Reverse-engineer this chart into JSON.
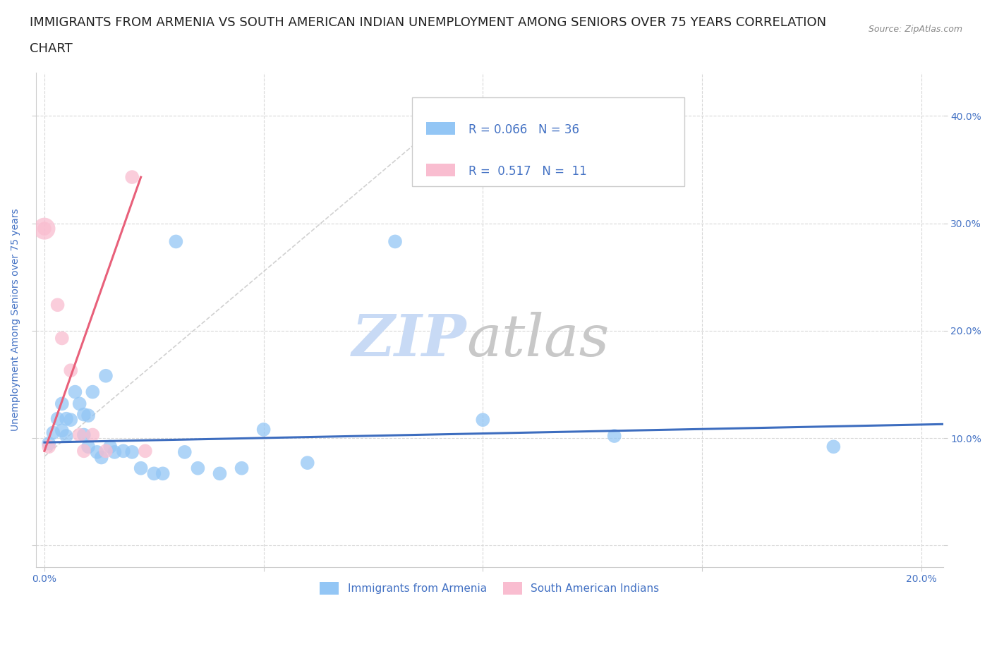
{
  "title_line1": "IMMIGRANTS FROM ARMENIA VS SOUTH AMERICAN INDIAN UNEMPLOYMENT AMONG SENIORS OVER 75 YEARS CORRELATION",
  "title_line2": "CHART",
  "source": "Source: ZipAtlas.com",
  "ylabel": "Unemployment Among Seniors over 75 years",
  "xlim": [
    -0.002,
    0.205
  ],
  "ylim": [
    -0.02,
    0.44
  ],
  "xticks": [
    0.0,
    0.05,
    0.1,
    0.15,
    0.2
  ],
  "yticks": [
    0.0,
    0.1,
    0.2,
    0.3,
    0.4
  ],
  "xtick_labels": [
    "0.0%",
    "",
    "",
    "",
    "20.0%"
  ],
  "ytick_right_labels": [
    "",
    "10.0%",
    "20.0%",
    "30.0%",
    "40.0%"
  ],
  "blue_color": "#93c6f5",
  "blue_line_color": "#3d6dbf",
  "pink_color": "#f9bdd0",
  "pink_line_color": "#e8607a",
  "axis_text_color": "#4472c4",
  "watermark_color_zip": "#c8daf5",
  "watermark_color_atlas": "#c8c8c8",
  "R_blue": 0.066,
  "N_blue": 36,
  "R_pink": 0.517,
  "N_pink": 11,
  "blue_scatter_x": [
    0.001,
    0.002,
    0.003,
    0.004,
    0.004,
    0.005,
    0.005,
    0.006,
    0.007,
    0.008,
    0.009,
    0.009,
    0.01,
    0.01,
    0.011,
    0.012,
    0.013,
    0.014,
    0.015,
    0.016,
    0.018,
    0.02,
    0.022,
    0.025,
    0.027,
    0.03,
    0.032,
    0.035,
    0.04,
    0.045,
    0.05,
    0.06,
    0.08,
    0.1,
    0.13,
    0.18
  ],
  "blue_scatter_y": [
    0.095,
    0.105,
    0.118,
    0.107,
    0.132,
    0.102,
    0.118,
    0.117,
    0.143,
    0.132,
    0.103,
    0.122,
    0.092,
    0.121,
    0.143,
    0.087,
    0.082,
    0.158,
    0.092,
    0.087,
    0.088,
    0.087,
    0.072,
    0.067,
    0.067,
    0.283,
    0.087,
    0.072,
    0.067,
    0.072,
    0.108,
    0.077,
    0.283,
    0.117,
    0.102,
    0.092
  ],
  "pink_scatter_x": [
    0.0,
    0.001,
    0.003,
    0.004,
    0.006,
    0.008,
    0.009,
    0.011,
    0.014,
    0.02,
    0.023
  ],
  "pink_scatter_y": [
    0.295,
    0.092,
    0.224,
    0.193,
    0.163,
    0.103,
    0.088,
    0.103,
    0.088,
    0.343,
    0.088
  ],
  "pink_scatter_big_x": [
    0.0
  ],
  "pink_scatter_big_y": [
    0.295
  ],
  "blue_trend_x": [
    0.0,
    0.205
  ],
  "blue_trend_y": [
    0.096,
    0.113
  ],
  "pink_trend_x": [
    0.0,
    0.022
  ],
  "pink_trend_y": [
    0.088,
    0.343
  ],
  "dash_line_x": [
    0.0,
    0.095
  ],
  "dash_line_y": [
    0.083,
    0.41
  ],
  "legend_label_blue": "Immigrants from Armenia",
  "legend_label_pink": "South American Indians",
  "grid_color": "#d8d8d8",
  "background_color": "#ffffff",
  "title_fontsize": 13,
  "axis_label_fontsize": 10,
  "tick_fontsize": 10,
  "legend_fontsize": 12,
  "scatter_size": 200,
  "scatter_size_big": 500
}
